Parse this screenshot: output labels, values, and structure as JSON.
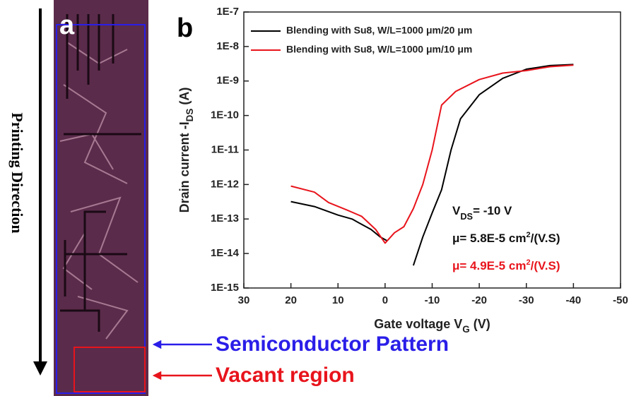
{
  "panel_a": {
    "label": "a",
    "direction": "Printing Direction",
    "pattern_label": "Semiconductor Pattern",
    "vacant_label": "Vacant region"
  },
  "chart_data": {
    "type": "line",
    "panel_label": "b",
    "x_label": {
      "parts": [
        {
          "text": "Gate voltage V"
        },
        {
          "text": "G",
          "script": "sub"
        },
        {
          "text": " (V)"
        }
      ]
    },
    "y_label": {
      "parts": [
        {
          "text": "Drain current -I"
        },
        {
          "text": "DS",
          "script": "sub"
        },
        {
          "text": " (A)"
        }
      ]
    },
    "xlim": [
      30,
      -50
    ],
    "xticks": [
      30,
      20,
      10,
      0,
      -10,
      -20,
      -30,
      -40,
      -50
    ],
    "ylim": [
      1e-15,
      1e-07
    ],
    "log_y": true,
    "legend": "upper left",
    "yticks": [
      {
        "value": 1e-15,
        "label": "1E-15"
      },
      {
        "value": 1e-14,
        "label": "1E-14"
      },
      {
        "value": 1e-13,
        "label": "1E-13"
      },
      {
        "value": 1e-12,
        "label": "1E-12"
      },
      {
        "value": 1e-11,
        "label": "1E-11"
      },
      {
        "value": 1e-10,
        "label": "1E-10"
      },
      {
        "value": 1e-09,
        "label": "1E-9"
      },
      {
        "value": 1e-08,
        "label": "1E-8"
      },
      {
        "value": 1e-07,
        "label": "1E-7"
      }
    ],
    "series": [
      {
        "name": "Blending with Su8, W/L=1000 μm/20 μm",
        "color": "#000000",
        "x": [
          20,
          15,
          10,
          7,
          5,
          3,
          1,
          -0.5,
          -3,
          -6,
          -8,
          -10,
          -12,
          -14,
          -16,
          -20,
          -25,
          -30,
          -35,
          -40
        ],
        "values": [
          3.2e-13,
          2.3e-13,
          1.3e-13,
          1e-13,
          7e-14,
          5e-14,
          3e-14,
          2.3e-14,
          null,
          4.5e-15,
          3e-14,
          1.5e-13,
          7e-13,
          1e-11,
          8e-11,
          4e-10,
          1.2e-09,
          2.2e-09,
          2.8e-09,
          3e-09
        ]
      },
      {
        "name": "Blending with Su8, W/L=1000 μm/10 μm",
        "color": "#e8141c",
        "x": [
          20,
          15,
          12,
          8,
          5,
          2,
          0,
          -2,
          -4,
          -6,
          -8,
          -10,
          -12,
          -15,
          -20,
          -25,
          -30,
          -35,
          -40
        ],
        "values": [
          9e-13,
          6e-13,
          3e-13,
          1.8e-13,
          1.2e-13,
          5e-14,
          2e-14,
          4e-14,
          6e-14,
          2e-13,
          1e-12,
          1e-11,
          2e-10,
          5e-10,
          1.1e-09,
          1.7e-09,
          2e-09,
          2.6e-09,
          2.9e-09
        ]
      }
    ],
    "annotations": [
      {
        "color": "#111111",
        "parts": [
          {
            "text": "V"
          },
          {
            "text": "DS",
            "script": "sub"
          },
          {
            "text": "= -10 V"
          }
        ]
      },
      {
        "color": "#111111",
        "parts": [
          {
            "text": "μ= 5.8E-5 cm"
          },
          {
            "text": "2",
            "script": "sup"
          },
          {
            "text": "/(V.S)"
          }
        ]
      },
      {
        "color": "#e8141c",
        "parts": [
          {
            "text": "μ= 4.9E-5 cm"
          },
          {
            "text": "2",
            "script": "sup"
          },
          {
            "text": "/(V.S)"
          }
        ]
      }
    ]
  }
}
